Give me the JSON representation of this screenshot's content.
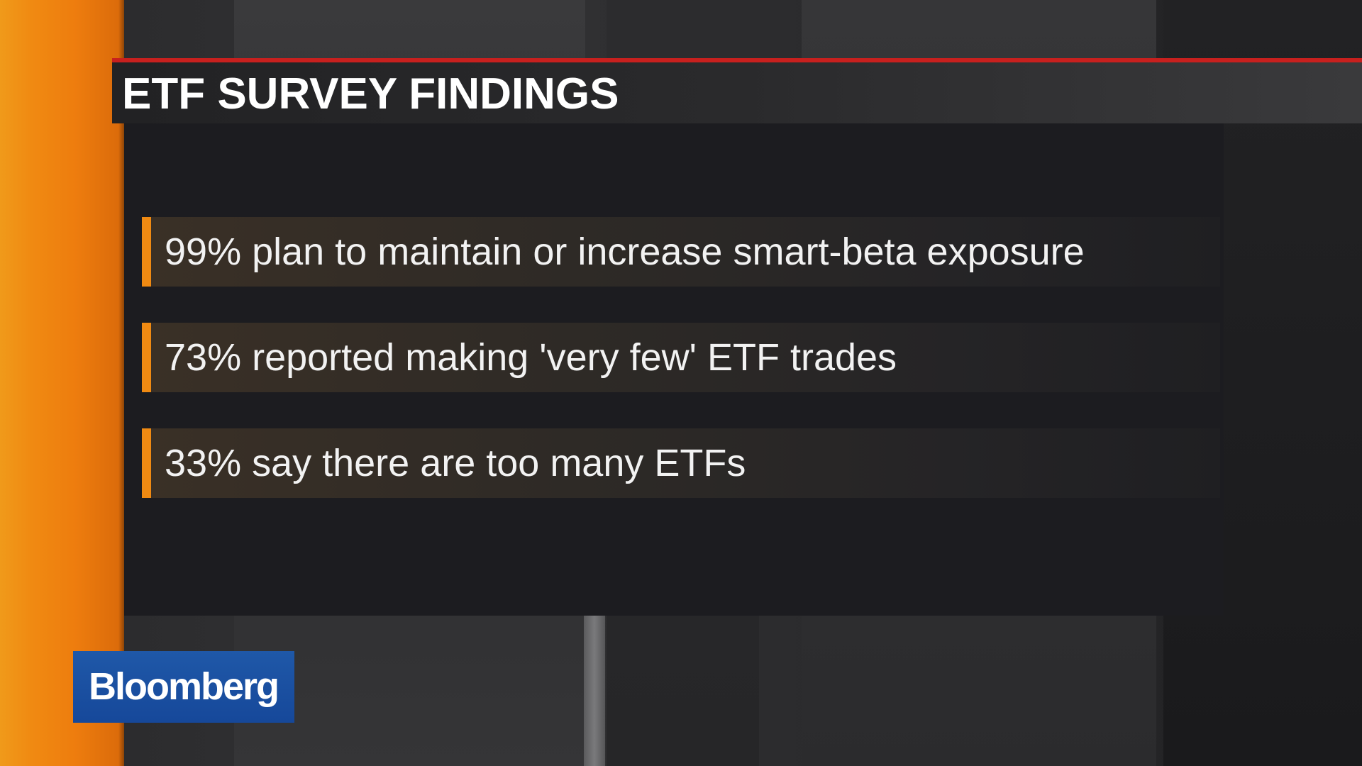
{
  "title": "ETF SURVEY FINDINGS",
  "findings": [
    "99% plan to maintain or increase smart-beta exposure",
    "73% reported making 'very few' ETF trades",
    "33% say there are too many ETFs"
  ],
  "logo": "Bloomberg",
  "colors": {
    "accent_orange": "#f08a12",
    "title_rule_red": "#c8201e",
    "logo_blue": "#1f58a8",
    "panel_dark": "#1c1c20"
  }
}
